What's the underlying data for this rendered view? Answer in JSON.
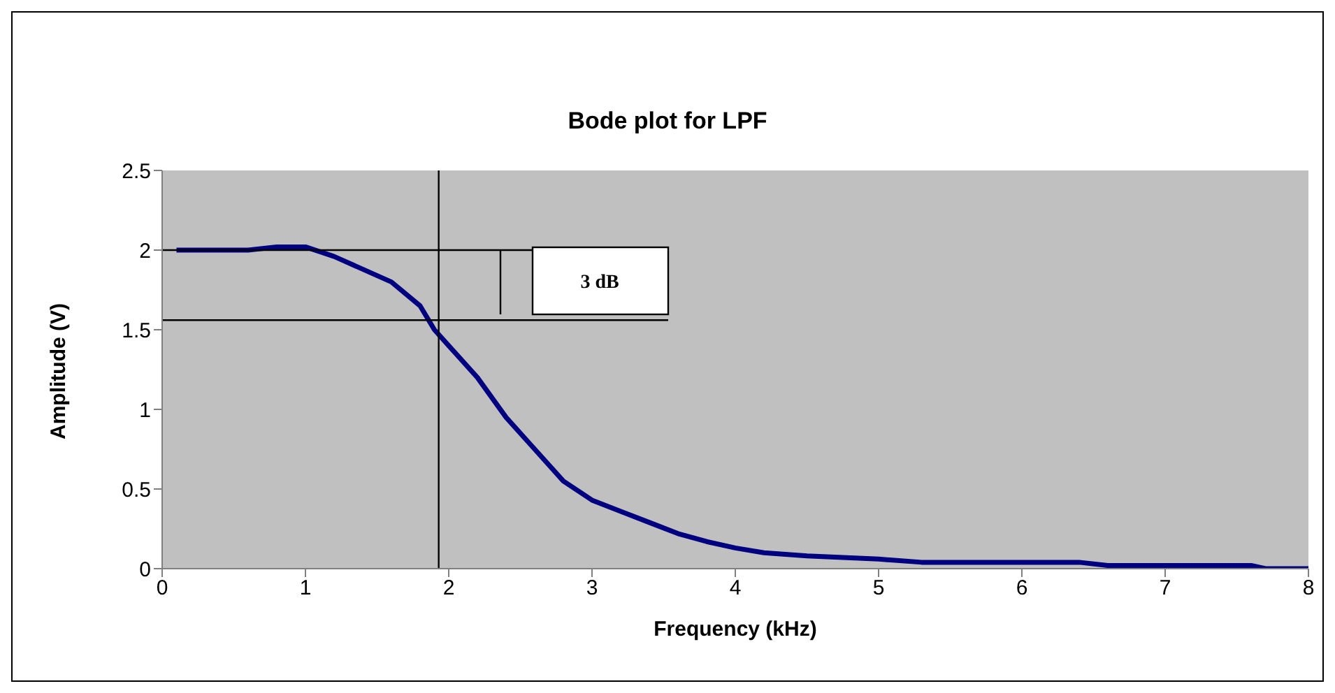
{
  "chart_data": {
    "type": "line",
    "title": "Bode plot for LPF",
    "xlabel": "Frequency (kHz)",
    "ylabel": "Amplitude (V)",
    "x": [
      0.1,
      0.3,
      0.6,
      0.8,
      1.0,
      1.2,
      1.4,
      1.6,
      1.8,
      1.9,
      2.0,
      2.2,
      2.4,
      2.6,
      2.8,
      3.0,
      3.2,
      3.4,
      3.6,
      3.8,
      4.0,
      4.2,
      4.5,
      5.0,
      5.3,
      6.0,
      6.4,
      6.6,
      7.6,
      7.7,
      8.0
    ],
    "series": [
      {
        "color": "#000080",
        "values": [
          2.0,
          2.0,
          2.0,
          2.02,
          2.02,
          1.96,
          1.88,
          1.8,
          1.65,
          1.5,
          1.4,
          1.2,
          0.95,
          0.75,
          0.55,
          0.43,
          0.36,
          0.29,
          0.22,
          0.17,
          0.13,
          0.1,
          0.08,
          0.06,
          0.04,
          0.04,
          0.04,
          0.02,
          0.02,
          0,
          0
        ]
      }
    ],
    "xlim": [
      0,
      8
    ],
    "xticks": [
      0,
      1,
      2,
      3,
      4,
      5,
      6,
      7,
      8
    ],
    "ylim": [
      0,
      2.5
    ],
    "yticks": [
      0,
      0.5,
      1,
      1.5,
      2,
      2.5
    ],
    "ref_lines": [
      {
        "axis": "y",
        "value": 2,
        "color": "#000000"
      },
      {
        "axis": "y",
        "value": 1.56,
        "color": "#000000"
      },
      {
        "axis": "x",
        "value": 1.93,
        "color": "#000000"
      }
    ],
    "annotations": [
      "3 dB"
    ],
    "grid": false,
    "legend": false,
    "marker": "none",
    "line_style": "solid"
  }
}
